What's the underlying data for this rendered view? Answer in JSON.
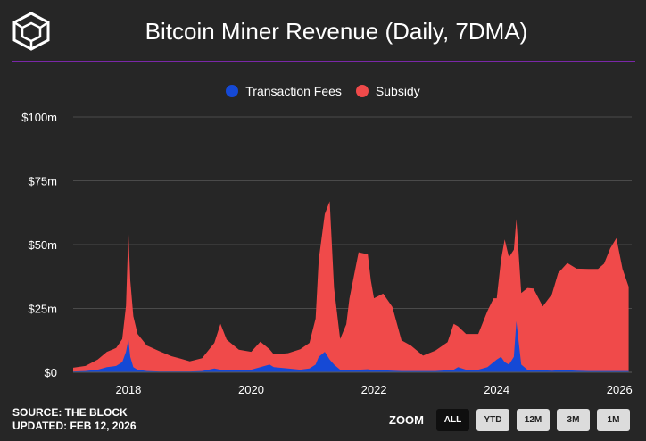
{
  "header": {
    "title": "Bitcoin Miner Revenue (Daily, 7DMA)"
  },
  "legend": {
    "items": [
      {
        "label": "Transaction Fees",
        "color": "#1549d6"
      },
      {
        "label": "Subsidy",
        "color": "#f04a4a"
      }
    ]
  },
  "footer": {
    "source": "SOURCE: THE BLOCK",
    "updated": "UPDATED: FEB 12, 2026"
  },
  "zoom": {
    "label": "ZOOM",
    "buttons": [
      "ALL",
      "YTD",
      "12M",
      "3M",
      "1M"
    ],
    "active": "ALL"
  },
  "colors": {
    "background": "#262626",
    "grid": "#4a4a4a",
    "divider": "#7a27a8"
  },
  "chart_data": {
    "type": "area",
    "stacked": true,
    "title": "Bitcoin Miner Revenue (Daily, 7DMA)",
    "ylim": [
      0,
      100
    ],
    "xlim": [
      2017.1,
      2026.2
    ],
    "y_ticks": [
      {
        "value": 0,
        "label": "$0"
      },
      {
        "value": 25,
        "label": "$25m"
      },
      {
        "value": 50,
        "label": "$50m"
      },
      {
        "value": 75,
        "label": "$75m"
      },
      {
        "value": 100,
        "label": "$100m"
      }
    ],
    "x_ticks": [
      "2018",
      "2020",
      "2022",
      "2024",
      "2026"
    ],
    "x_tick_values": [
      2018,
      2020,
      2022,
      2024,
      2026
    ],
    "grid": true,
    "legend_position": "top-center",
    "x": [
      2017.1,
      2017.3,
      2017.5,
      2017.65,
      2017.8,
      2017.9,
      2017.96,
      2018.0,
      2018.03,
      2018.08,
      2018.15,
      2018.3,
      2018.5,
      2018.7,
      2018.85,
      2019.0,
      2019.2,
      2019.4,
      2019.5,
      2019.6,
      2019.8,
      2020.0,
      2020.15,
      2020.3,
      2020.37,
      2020.6,
      2020.8,
      2020.95,
      2021.05,
      2021.1,
      2021.2,
      2021.28,
      2021.35,
      2021.45,
      2021.55,
      2021.6,
      2021.75,
      2021.9,
      2021.95,
      2022.0,
      2022.15,
      2022.3,
      2022.45,
      2022.6,
      2022.8,
      2023.0,
      2023.2,
      2023.3,
      2023.37,
      2023.5,
      2023.7,
      2023.85,
      2023.95,
      2024.0,
      2024.07,
      2024.13,
      2024.2,
      2024.28,
      2024.32,
      2024.4,
      2024.5,
      2024.6,
      2024.75,
      2024.9,
      2025.0,
      2025.15,
      2025.3,
      2025.5,
      2025.65,
      2025.75,
      2025.85,
      2025.95,
      2026.05,
      2026.15
    ],
    "series": [
      {
        "name": "Subsidy",
        "values": [
          1.5,
          2,
          4,
          6,
          7,
          9,
          18,
          42,
          30,
          20,
          14,
          10,
          8,
          6,
          5,
          4,
          5,
          10,
          18,
          12,
          8,
          7,
          10,
          6,
          5,
          6,
          8,
          10,
          18,
          38,
          54,
          62,
          30,
          12,
          18,
          28,
          46,
          45,
          35,
          28,
          30,
          25,
          12,
          10,
          6,
          8,
          11,
          18,
          16,
          14,
          14,
          22,
          25,
          24,
          38,
          48,
          42,
          42,
          40,
          28,
          32,
          32,
          25,
          30,
          38,
          42,
          40,
          40,
          40,
          42,
          48,
          52,
          40,
          33
        ]
      },
      {
        "name": "Transaction Fees",
        "values": [
          0.3,
          0.5,
          1,
          2,
          2.5,
          4,
          8,
          13,
          6,
          2,
          1,
          0.5,
          0.3,
          0.3,
          0.3,
          0.3,
          0.5,
          1.5,
          1,
          0.8,
          0.8,
          1,
          2,
          3,
          2,
          1.5,
          1,
          1.5,
          3,
          6,
          8,
          5,
          3,
          1,
          0.8,
          0.8,
          1,
          1.2,
          1,
          1,
          0.8,
          0.6,
          0.5,
          0.5,
          0.5,
          0.5,
          0.8,
          1,
          2,
          1,
          1,
          2,
          4,
          5,
          6,
          4,
          3,
          6,
          20,
          3,
          1,
          0.8,
          0.8,
          0.6,
          0.8,
          0.8,
          0.6,
          0.5,
          0.5,
          0.5,
          0.5,
          0.5,
          0.5,
          0.5
        ]
      }
    ]
  }
}
